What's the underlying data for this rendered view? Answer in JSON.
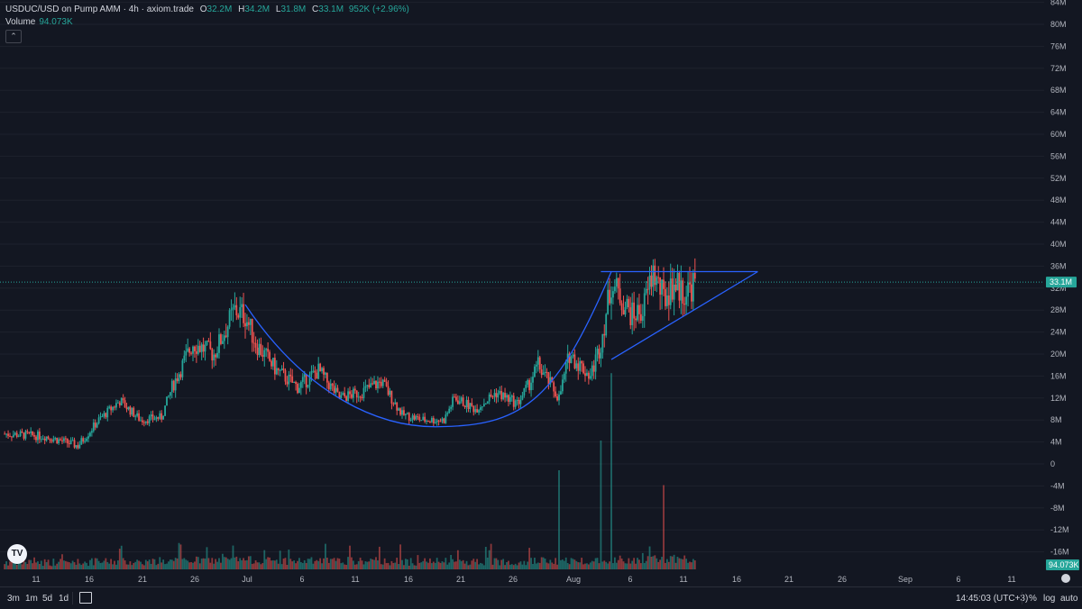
{
  "legend": {
    "symbol": "USDUC/USD on Pump AMM · 4h · axiom.trade",
    "open_label": "O",
    "open": "32.2M",
    "high_label": "H",
    "high": "34.2M",
    "low_label": "L",
    "low": "31.8M",
    "close_label": "C",
    "close": "33.1M",
    "change": "952K (+2.96%)",
    "volume_label": "Volume",
    "volume_value": "94.073K",
    "collapse_icon": "chevron-up-icon"
  },
  "price_axis": {
    "ticks": [
      "84M",
      "80M",
      "76M",
      "72M",
      "68M",
      "64M",
      "60M",
      "56M",
      "52M",
      "48M",
      "44M",
      "40M",
      "36M",
      "32M",
      "28M",
      "24M",
      "20M",
      "16M",
      "12M",
      "8M",
      "4M",
      "0",
      "-4M",
      "-8M",
      "-12M",
      "-16M"
    ],
    "last_price_label": "33.1M",
    "volume_label": "94.073K"
  },
  "time_axis": {
    "labels": [
      "11",
      "16",
      "21",
      "26",
      "Jul",
      "6",
      "11",
      "16",
      "21",
      "26",
      "Aug",
      "6",
      "11",
      "16",
      "21",
      "26",
      "Sep",
      "6",
      "11"
    ]
  },
  "colors": {
    "background": "#131722",
    "up": "#26a69a",
    "down": "#ef5350",
    "drawing": "#2962ff",
    "last_price": "#26a69a"
  },
  "chart_data": {
    "type": "candlestick",
    "title": "USDUC/USD on Pump AMM · 4h · axiom.trade",
    "interval": "4h",
    "x_range": [
      "2025-06-08",
      "2025-09-13"
    ],
    "y_range_millions": [
      -19,
      85
    ],
    "last_candle": {
      "open": 32.2,
      "high": 34.2,
      "low": 31.8,
      "close": 33.1
    },
    "price_path_millions": [
      {
        "date": "2025-06-08",
        "price": 5.5
      },
      {
        "date": "2025-06-12",
        "price": 5.0
      },
      {
        "date": "2025-06-15",
        "price": 3.3
      },
      {
        "date": "2025-06-17",
        "price": 8.0
      },
      {
        "date": "2025-06-19",
        "price": 11.5
      },
      {
        "date": "2025-06-21",
        "price": 8.0
      },
      {
        "date": "2025-06-23",
        "price": 8.5
      },
      {
        "date": "2025-06-24",
        "price": 14.0
      },
      {
        "date": "2025-06-26",
        "price": 22.0
      },
      {
        "date": "2025-06-28",
        "price": 20.0
      },
      {
        "date": "2025-06-30",
        "price": 28.0
      },
      {
        "date": "2025-07-01",
        "price": 27.0
      },
      {
        "date": "2025-07-02",
        "price": 22.0
      },
      {
        "date": "2025-07-04",
        "price": 17.0
      },
      {
        "date": "2025-07-06",
        "price": 14.0
      },
      {
        "date": "2025-07-08",
        "price": 17.0
      },
      {
        "date": "2025-07-10",
        "price": 12.0
      },
      {
        "date": "2025-07-12",
        "price": 13.0
      },
      {
        "date": "2025-07-14",
        "price": 15.0
      },
      {
        "date": "2025-07-16",
        "price": 9.0
      },
      {
        "date": "2025-07-18",
        "price": 8.0
      },
      {
        "date": "2025-07-20",
        "price": 8.0
      },
      {
        "date": "2025-07-21",
        "price": 12.0
      },
      {
        "date": "2025-07-23",
        "price": 10.0
      },
      {
        "date": "2025-07-25",
        "price": 13.0
      },
      {
        "date": "2025-07-27",
        "price": 11.0
      },
      {
        "date": "2025-07-28",
        "price": 14.0
      },
      {
        "date": "2025-07-29",
        "price": 18.0
      },
      {
        "date": "2025-07-31",
        "price": 12.0
      },
      {
        "date": "2025-08-01",
        "price": 20.0
      },
      {
        "date": "2025-08-02",
        "price": 18.0
      },
      {
        "date": "2025-08-03",
        "price": 16.0
      },
      {
        "date": "2025-08-04",
        "price": 22.0
      },
      {
        "date": "2025-08-05",
        "price": 33.0
      },
      {
        "date": "2025-08-07",
        "price": 27.0
      },
      {
        "date": "2025-08-08",
        "price": 28.0
      },
      {
        "date": "2025-08-09",
        "price": 35.0
      },
      {
        "date": "2025-08-10",
        "price": 30.0
      },
      {
        "date": "2025-08-11",
        "price": 33.0
      },
      {
        "date": "2025-08-12",
        "price": 31.0
      },
      {
        "date": "2025-08-13",
        "price": 33.1
      }
    ],
    "volume_peaks_millions": [
      {
        "date": "2025-07-31",
        "value": 20.0
      },
      {
        "date": "2025-08-04",
        "value": 26.0
      },
      {
        "date": "2025-08-05",
        "value": 18.0
      },
      {
        "date": "2025-08-10",
        "value": 17.0
      }
    ],
    "annotations": [
      {
        "type": "arc",
        "from": {
          "date": "2025-07-01",
          "price": 29.0
        },
        "bottom": {
          "date": "2025-07-20",
          "price": 6.8
        },
        "to": {
          "date": "2025-08-05",
          "price": 35.0
        }
      },
      {
        "type": "hline",
        "price": 35.0,
        "from": "2025-08-04",
        "to": "2025-08-19"
      },
      {
        "type": "trendline",
        "from": {
          "date": "2025-08-05",
          "price": 19.0
        },
        "to": {
          "date": "2025-08-19",
          "price": 35.0
        }
      }
    ]
  },
  "bottombar": {
    "timeframes": [
      "3m",
      "1m",
      "5d",
      "1d"
    ],
    "date_range_icon": "calendar-arrow-icon",
    "clock": "14:45:03 (UTC+3)",
    "percent": "%",
    "log": "log",
    "auto": "auto"
  }
}
